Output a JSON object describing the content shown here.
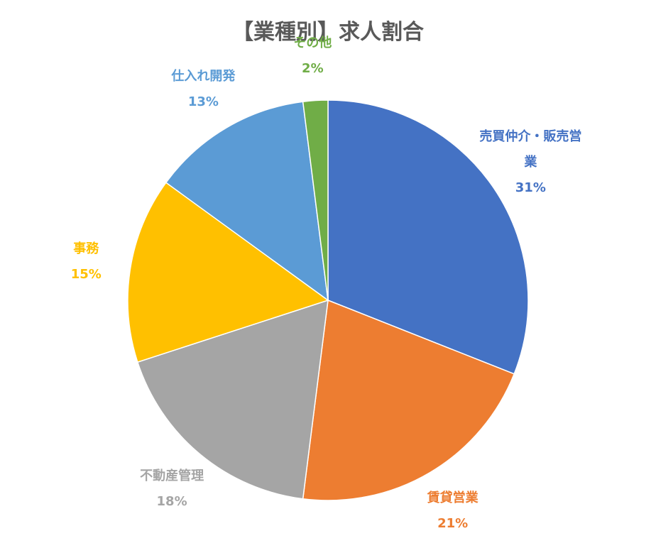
{
  "chart_data": {
    "type": "pie",
    "title": "【業種別】求人割合",
    "categories": [
      "売買仲介・販売営業",
      "賃貸営業",
      "不動産管理",
      "事務",
      "仕入れ開発",
      "その他"
    ],
    "values": [
      31,
      21,
      18,
      15,
      13,
      2
    ],
    "value_labels": [
      "31%",
      "21%",
      "18%",
      "15%",
      "13%",
      "2%"
    ],
    "colors": [
      "#4472c4",
      "#ed7d31",
      "#a5a5a5",
      "#ffc000",
      "#5b9bd5",
      "#70ad47"
    ]
  }
}
